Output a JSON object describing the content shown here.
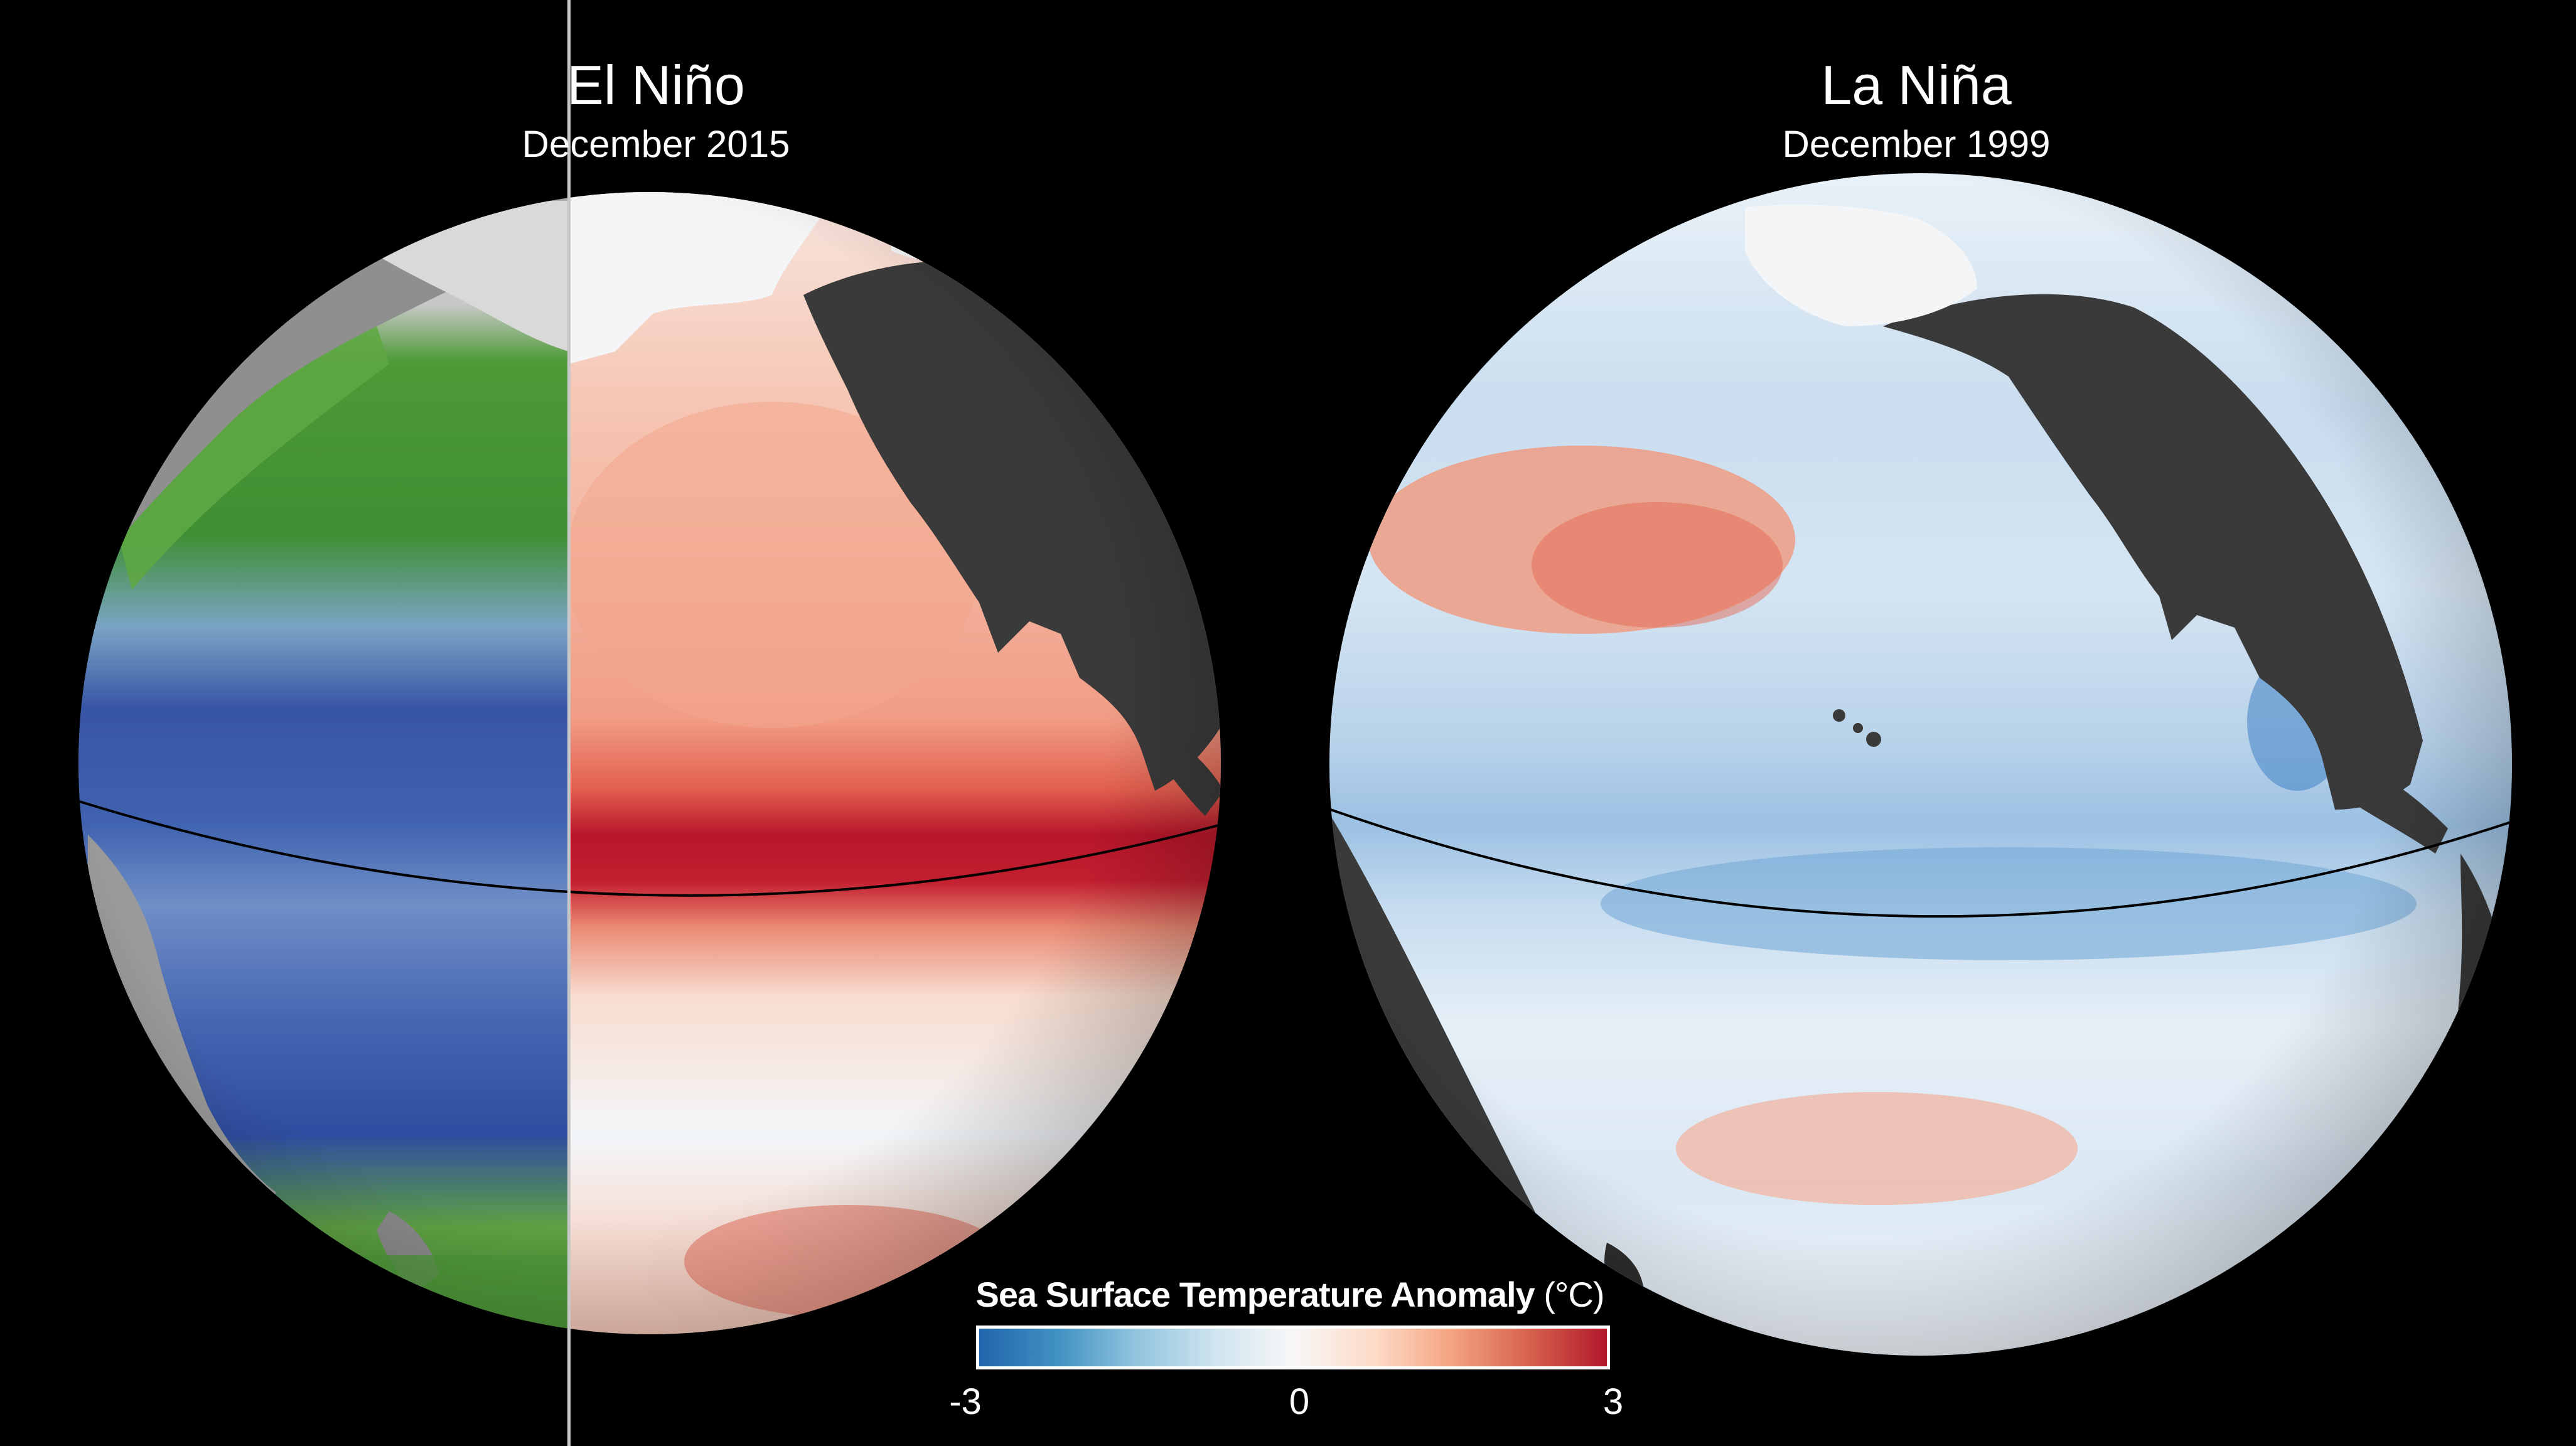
{
  "panels": {
    "left": {
      "title": "El Niño",
      "subtitle": "December 2015"
    },
    "right": {
      "title": "La Niña",
      "subtitle": "December 1999"
    }
  },
  "legend": {
    "title": "Sea Surface Temperature Anomaly",
    "unit": "(°C)",
    "min_label": "-3",
    "mid_label": "0",
    "max_label": "3",
    "colors": [
      "#2166ac",
      "#4393c3",
      "#92c5de",
      "#d1e5f0",
      "#f7f7f7",
      "#fddbc7",
      "#f4a582",
      "#d6604d",
      "#b2182b"
    ]
  },
  "colors": {
    "background": "#000000",
    "land": "#3a3a3a",
    "ice": "#f2f4f6",
    "chlorophyll_green": "#4f9a3a",
    "chlorophyll_blue": "#3a5aa8",
    "warm": "#b2182b",
    "cool": "#2166ac"
  }
}
